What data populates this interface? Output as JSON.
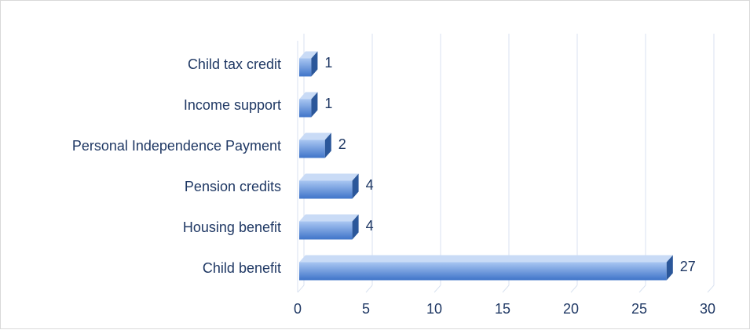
{
  "chart_data": {
    "type": "bar",
    "orientation": "horizontal",
    "style": "3d",
    "title": "",
    "xlabel": "",
    "ylabel": "",
    "categories": [
      "Child benefit",
      "Housing benefit",
      "Pension credits",
      "Personal Independence Payment",
      "Income support",
      "Child tax credit"
    ],
    "values": [
      27,
      4,
      4,
      2,
      1,
      1
    ],
    "xlim": [
      0,
      30
    ],
    "xticks": [
      "0",
      "5",
      "10",
      "15",
      "20",
      "25",
      "30"
    ],
    "grid": true,
    "legend": "none",
    "data_labels": true,
    "colors": {
      "bar_front_top": "#a9c6f2",
      "bar_front_bottom": "#3f74c9",
      "bar_top_face": "#c9dbf6",
      "bar_end_face": "#2b579a",
      "gridline": "#d9e2f0",
      "text": "#1f3864"
    }
  }
}
